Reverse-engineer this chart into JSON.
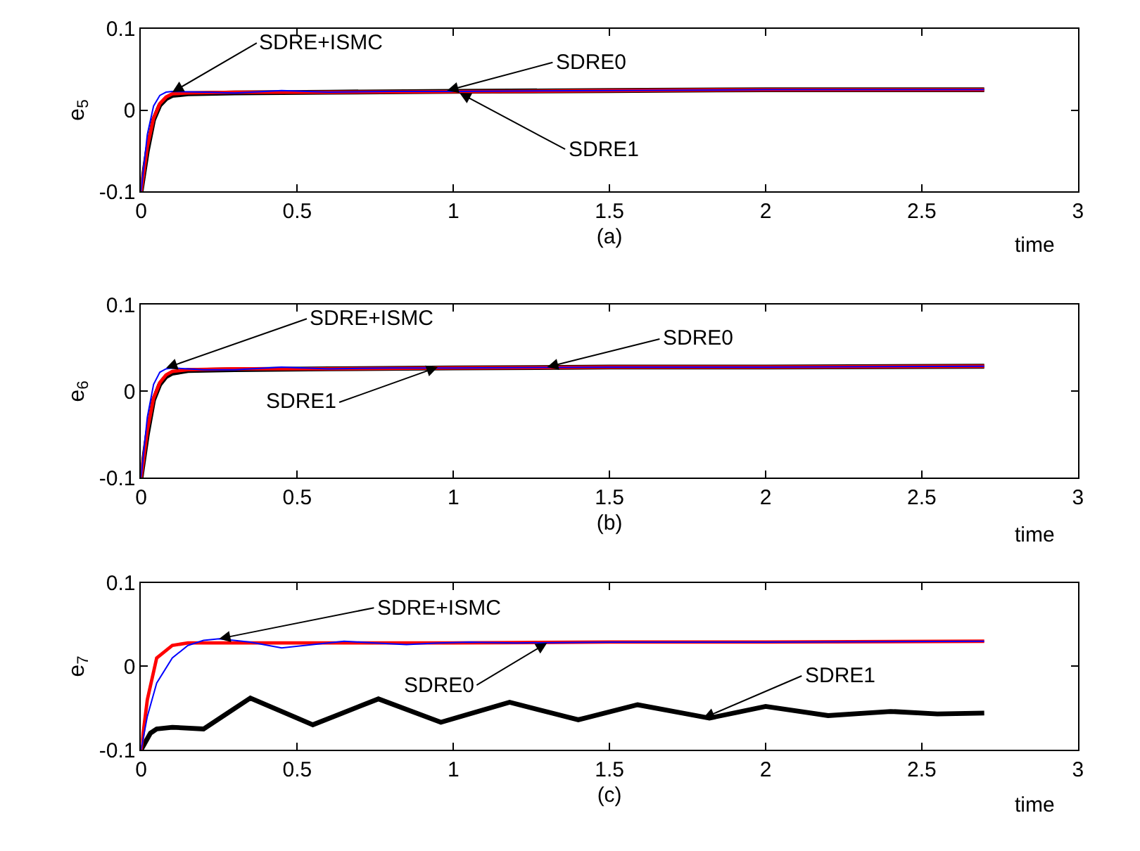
{
  "chart_data": [
    {
      "type": "line",
      "ylabel": "e$_{5}$",
      "xlabel": "(a)",
      "xlim": [
        0,
        3
      ],
      "ylim": [
        -0.1,
        0.1
      ],
      "xticks": [
        0,
        0.5,
        1,
        1.5,
        2,
        2.5,
        3
      ],
      "yticks": [
        -0.1,
        0,
        0.1
      ],
      "marker": "none",
      "line_style": "solid",
      "series": [
        {
          "color": "#000000",
          "x": [
            0,
            0.02,
            0.04,
            0.06,
            0.08,
            0.1,
            0.15,
            0.3,
            0.6,
            1,
            1.5,
            2,
            2.7
          ],
          "values": [
            -0.1,
            -0.05,
            -0.012,
            0.006,
            0.014,
            0.018,
            0.02,
            0.021,
            0.022,
            0.023,
            0.024,
            0.025,
            0.025
          ]
        },
        {
          "color": "#ff0000",
          "x": [
            0,
            0.02,
            0.04,
            0.06,
            0.08,
            0.1,
            0.15,
            0.3,
            0.6,
            1.2,
            1.5,
            2,
            2.7
          ],
          "values": [
            -0.1,
            -0.045,
            -0.01,
            0.008,
            0.016,
            0.02,
            0.021,
            0.022,
            0.022,
            0.023,
            0.024,
            0.025,
            0.025
          ]
        },
        {
          "color": "#0000ff",
          "x": [
            0,
            0.02,
            0.04,
            0.06,
            0.08,
            0.1,
            0.2,
            0.3,
            0.45,
            0.6,
            0.8,
            1,
            1.5,
            2,
            2.7
          ],
          "values": [
            -0.1,
            -0.03,
            0.005,
            0.018,
            0.022,
            0.023,
            0.022,
            0.021,
            0.024,
            0.022,
            0.023,
            0.023,
            0.024,
            0.025,
            0.025
          ]
        }
      ],
      "annotations": [
        {
          "text": "SDRE+ISMC",
          "x": 0.1,
          "y": 0.022
        },
        {
          "text": "SDRE0",
          "x": 0.98,
          "y": 0.024
        },
        {
          "text": "SDRE1",
          "x": 1.02,
          "y": 0.021
        },
        "time"
      ]
    },
    {
      "type": "line",
      "ylabel": "e$_{6}$",
      "xlabel": "(b)",
      "xlim": [
        0,
        3
      ],
      "ylim": [
        -0.1,
        0.1
      ],
      "xticks": [
        0,
        0.5,
        1,
        1.5,
        2,
        2.5,
        3
      ],
      "yticks": [
        -0.1,
        0,
        0.1
      ],
      "marker": "none",
      "line_style": "solid",
      "series": [
        {
          "color": "#000000",
          "x": [
            0,
            0.02,
            0.04,
            0.06,
            0.08,
            0.1,
            0.15,
            0.3,
            0.6,
            1,
            1.5,
            2,
            2.7
          ],
          "values": [
            -0.1,
            -0.05,
            -0.01,
            0.008,
            0.017,
            0.021,
            0.024,
            0.025,
            0.026,
            0.027,
            0.028,
            0.028,
            0.029
          ]
        },
        {
          "color": "#ff0000",
          "x": [
            0,
            0.02,
            0.04,
            0.06,
            0.08,
            0.1,
            0.15,
            0.3,
            0.6,
            1,
            1.5,
            2,
            2.7
          ],
          "values": [
            -0.1,
            -0.045,
            -0.008,
            0.01,
            0.019,
            0.023,
            0.025,
            0.026,
            0.026,
            0.027,
            0.028,
            0.028,
            0.029
          ]
        },
        {
          "color": "#0000ff",
          "x": [
            0,
            0.02,
            0.04,
            0.06,
            0.08,
            0.1,
            0.2,
            0.3,
            0.45,
            0.6,
            0.8,
            1,
            1.5,
            2,
            2.7
          ],
          "values": [
            -0.1,
            -0.03,
            0.008,
            0.022,
            0.026,
            0.027,
            0.025,
            0.025,
            0.028,
            0.026,
            0.027,
            0.027,
            0.028,
            0.028,
            0.029
          ]
        }
      ],
      "annotations": [
        {
          "text": "SDRE+ISMC",
          "x": 0.08,
          "y": 0.027
        },
        {
          "text": "SDRE0",
          "x": 1.3,
          "y": 0.028
        },
        {
          "text": "SDRE1",
          "x": 0.95,
          "y": 0.028
        },
        "time"
      ]
    },
    {
      "type": "line",
      "ylabel": "e$_{7}$",
      "xlabel": "(c)",
      "xlim": [
        0,
        3
      ],
      "ylim": [
        -0.1,
        0.1
      ],
      "xticks": [
        0,
        0.5,
        1,
        1.5,
        2,
        2.5,
        3
      ],
      "yticks": [
        -0.1,
        0,
        0.1
      ],
      "marker": "none",
      "line_style": "solid",
      "series": [
        {
          "color": "#000000",
          "x": [
            0,
            0.03,
            0.05,
            0.1,
            0.2,
            0.35,
            0.55,
            0.76,
            0.96,
            1.18,
            1.4,
            1.59,
            1.82,
            2.0,
            2.2,
            2.4,
            2.55,
            2.7
          ],
          "values": [
            -0.1,
            -0.08,
            -0.075,
            -0.073,
            -0.075,
            -0.038,
            -0.07,
            -0.039,
            -0.067,
            -0.043,
            -0.064,
            -0.046,
            -0.062,
            -0.048,
            -0.059,
            -0.054,
            -0.057,
            -0.056
          ]
        },
        {
          "color": "#ff0000",
          "x": [
            0,
            0.02,
            0.05,
            0.1,
            0.15,
            0.3,
            0.6,
            1,
            1.5,
            2,
            2.7
          ],
          "values": [
            -0.1,
            -0.04,
            0.01,
            0.025,
            0.028,
            0.028,
            0.028,
            0.028,
            0.029,
            0.029,
            0.03
          ]
        },
        {
          "color": "#0000ff",
          "x": [
            0,
            0.02,
            0.05,
            0.1,
            0.15,
            0.2,
            0.25,
            0.35,
            0.45,
            0.55,
            0.65,
            0.75,
            0.85,
            0.95,
            1.05,
            1.2,
            1.5,
            2,
            2.7
          ],
          "values": [
            -0.1,
            -0.06,
            -0.02,
            0.01,
            0.025,
            0.031,
            0.033,
            0.029,
            0.022,
            0.026,
            0.03,
            0.028,
            0.026,
            0.028,
            0.029,
            0.028,
            0.029,
            0.029,
            0.03
          ]
        }
      ],
      "annotations": [
        {
          "text": "SDRE+ISMC",
          "x": 0.25,
          "y": 0.033
        },
        {
          "text": "SDRE0",
          "x": 1.3,
          "y": 0.028
        },
        {
          "text": "SDRE1",
          "x": 1.8,
          "y": -0.062
        },
        "time"
      ]
    }
  ]
}
